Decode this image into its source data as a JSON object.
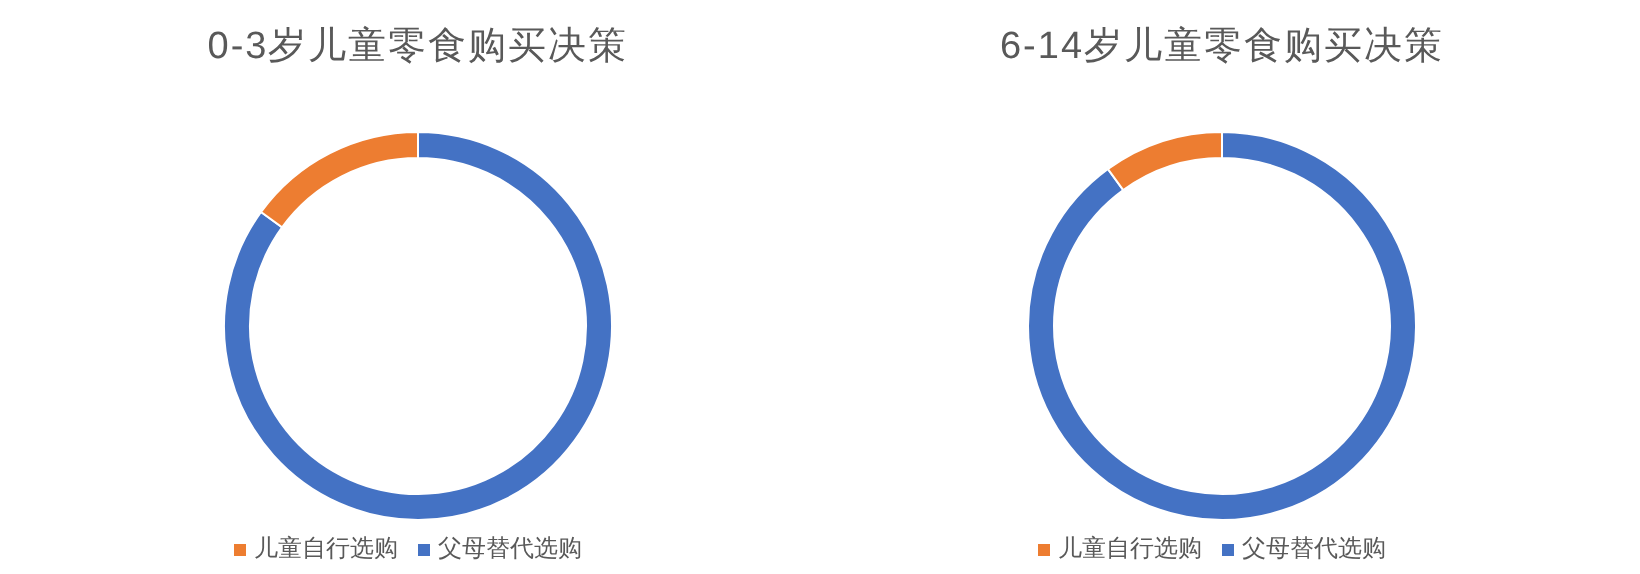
{
  "chart_data": [
    {
      "type": "donut",
      "title": "0-3岁儿童零食购买决策",
      "categories": [
        "父母替代选购",
        "儿童自行选购"
      ],
      "values": [
        85,
        15
      ],
      "colors": [
        "#4472c4",
        "#ed7d31"
      ],
      "legend": "bottom"
    },
    {
      "type": "donut",
      "title": "6-14岁儿童零食购买决策",
      "categories": [
        "父母替代选购",
        "儿童自行选购"
      ],
      "values": [
        90,
        10
      ],
      "colors": [
        "#4472c4",
        "#ed7d31"
      ],
      "legend": "bottom"
    }
  ]
}
